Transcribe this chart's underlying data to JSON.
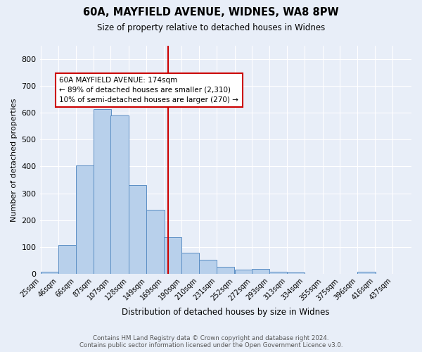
{
  "title": "60A, MAYFIELD AVENUE, WIDNES, WA8 8PW",
  "subtitle": "Size of property relative to detached houses in Widnes",
  "xlabel": "Distribution of detached houses by size in Widnes",
  "ylabel": "Number of detached properties",
  "footer_line1": "Contains HM Land Registry data © Crown copyright and database right 2024.",
  "footer_line2": "Contains public sector information licensed under the Open Government Licence v3.0.",
  "bin_labels": [
    "25sqm",
    "46sqm",
    "66sqm",
    "87sqm",
    "107sqm",
    "128sqm",
    "149sqm",
    "169sqm",
    "190sqm",
    "210sqm",
    "231sqm",
    "252sqm",
    "272sqm",
    "293sqm",
    "313sqm",
    "334sqm",
    "355sqm",
    "375sqm",
    "396sqm",
    "416sqm",
    "437sqm"
  ],
  "bar_heights": [
    7,
    106,
    403,
    614,
    590,
    330,
    238,
    135,
    77,
    53,
    25,
    14,
    17,
    8,
    4,
    0,
    0,
    0,
    8,
    0,
    0
  ],
  "bar_color": "#b8d0eb",
  "bar_edge_color": "#5b8ec4",
  "vline_x": 174,
  "vline_color": "#cc0000",
  "annotation_text": "60A MAYFIELD AVENUE: 174sqm\n← 89% of detached houses are smaller (2,310)\n10% of semi-detached houses are larger (270) →",
  "annotation_box_color": "#ffffff",
  "annotation_box_edge": "#cc0000",
  "ylim": [
    0,
    850
  ],
  "yticks": [
    0,
    100,
    200,
    300,
    400,
    500,
    600,
    700,
    800
  ],
  "background_color": "#e8eef8",
  "grid_color": "#ffffff",
  "property_sqm": 174,
  "bin_width": 21,
  "figwidth": 6.0,
  "figheight": 5.0,
  "dpi": 100
}
